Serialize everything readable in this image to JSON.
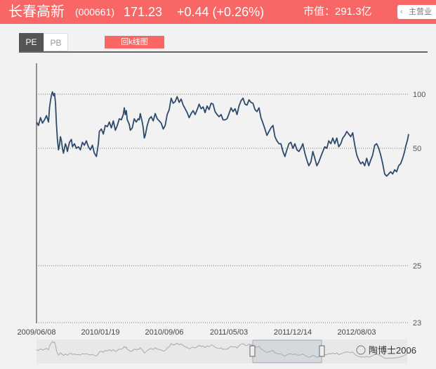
{
  "header": {
    "stock_name": "长春高新",
    "stock_code": "(000661)",
    "price": "171.23",
    "change": "+0.44 (+0.26%)",
    "market_cap": "市值：291.3亿",
    "main_business_label": "主营业",
    "back_arrow_icon": "chevron-left-icon"
  },
  "tabs": [
    "PE",
    "PB"
  ],
  "kline_button": "回k线图",
  "watermark": "陶博士2006",
  "colors": {
    "header_bg": "#f86665",
    "line": "#2e4a6b",
    "active_tab": "#555555"
  },
  "chart_data": {
    "type": "line",
    "title": "",
    "xlabel": "",
    "ylabel": "",
    "y_scale": "log",
    "yticks": [
      100,
      50,
      25,
      23
    ],
    "xticks": [
      "2009/06/08",
      "2010/01/19",
      "2010/09/06",
      "2011/05/03",
      "2011/12/14",
      "2012/08/03"
    ],
    "grid": "horizontal dotted",
    "series": [
      {
        "values": [
          [
            0,
            70
          ],
          [
            2,
            67
          ],
          [
            4,
            74
          ],
          [
            6,
            69
          ],
          [
            8,
            72
          ],
          [
            10,
            76
          ],
          [
            12,
            70
          ],
          [
            13,
            84
          ],
          [
            14,
            92
          ],
          [
            15,
            99
          ],
          [
            16,
            103
          ],
          [
            17,
            98
          ],
          [
            18,
            101
          ],
          [
            19,
            90
          ],
          [
            20,
            68
          ],
          [
            21,
            56
          ],
          [
            22,
            49
          ],
          [
            23,
            52
          ],
          [
            24,
            58
          ],
          [
            25,
            55
          ],
          [
            26,
            50
          ],
          [
            27,
            47
          ],
          [
            28,
            50
          ],
          [
            29,
            53
          ],
          [
            30,
            51
          ],
          [
            31,
            48
          ],
          [
            33,
            54
          ],
          [
            35,
            56
          ],
          [
            36,
            51
          ],
          [
            38,
            53
          ],
          [
            40,
            50
          ],
          [
            42,
            51
          ],
          [
            44,
            49
          ],
          [
            46,
            54
          ],
          [
            48,
            52
          ],
          [
            50,
            55
          ],
          [
            52,
            51
          ],
          [
            54,
            49
          ],
          [
            56,
            52
          ],
          [
            58,
            47
          ],
          [
            60,
            45
          ],
          [
            62,
            53
          ],
          [
            63,
            62
          ],
          [
            65,
            64
          ],
          [
            67,
            60
          ],
          [
            69,
            67
          ],
          [
            71,
            66
          ],
          [
            73,
            70
          ],
          [
            75,
            65
          ],
          [
            77,
            71
          ],
          [
            79,
            63
          ],
          [
            81,
            67
          ],
          [
            83,
            73
          ],
          [
            85,
            72
          ],
          [
            87,
            77
          ],
          [
            88,
            84
          ],
          [
            89,
            77
          ],
          [
            90,
            81
          ],
          [
            91,
            72
          ],
          [
            93,
            68
          ],
          [
            94,
            63
          ],
          [
            96,
            65
          ],
          [
            98,
            73
          ],
          [
            100,
            70
          ],
          [
            102,
            73
          ],
          [
            103,
            72
          ],
          [
            104,
            78
          ],
          [
            106,
            70
          ],
          [
            107,
            65
          ],
          [
            108,
            57
          ],
          [
            109,
            59
          ],
          [
            111,
            67
          ],
          [
            113,
            73
          ],
          [
            115,
            75
          ],
          [
            117,
            71
          ],
          [
            119,
            78
          ],
          [
            121,
            73
          ],
          [
            123,
            71
          ],
          [
            125,
            69
          ],
          [
            127,
            64
          ],
          [
            129,
            67
          ],
          [
            131,
            77
          ],
          [
            133,
            82
          ],
          [
            135,
            95
          ],
          [
            137,
            89
          ],
          [
            139,
            91
          ],
          [
            141,
            97
          ],
          [
            143,
            90
          ],
          [
            145,
            94
          ],
          [
            147,
            87
          ],
          [
            149,
            83
          ],
          [
            151,
            79
          ],
          [
            153,
            74
          ],
          [
            155,
            78
          ],
          [
            157,
            81
          ],
          [
            159,
            77
          ],
          [
            161,
            82
          ],
          [
            163,
            88
          ],
          [
            165,
            83
          ],
          [
            167,
            85
          ],
          [
            169,
            79
          ],
          [
            171,
            86
          ],
          [
            173,
            82
          ],
          [
            175,
            89
          ],
          [
            177,
            88
          ],
          [
            179,
            80
          ],
          [
            181,
            77
          ],
          [
            183,
            75
          ],
          [
            185,
            77
          ],
          [
            187,
            72
          ],
          [
            189,
            72
          ],
          [
            191,
            73
          ],
          [
            193,
            78
          ],
          [
            195,
            84
          ],
          [
            197,
            80
          ],
          [
            199,
            83
          ],
          [
            201,
            77
          ],
          [
            203,
            86
          ],
          [
            205,
            92
          ],
          [
            207,
            95
          ],
          [
            209,
            88
          ],
          [
            211,
            87
          ],
          [
            213,
            93
          ],
          [
            215,
            90
          ],
          [
            217,
            89
          ],
          [
            219,
            82
          ],
          [
            221,
            80
          ],
          [
            223,
            84
          ],
          [
            225,
            74
          ],
          [
            227,
            69
          ],
          [
            229,
            64
          ],
          [
            231,
            59
          ],
          [
            233,
            62
          ],
          [
            235,
            65
          ],
          [
            237,
            67
          ],
          [
            239,
            58
          ],
          [
            241,
            55
          ],
          [
            243,
            53
          ],
          [
            245,
            53
          ],
          [
            247,
            48
          ],
          [
            249,
            45
          ],
          [
            251,
            49
          ],
          [
            253,
            53
          ],
          [
            255,
            54
          ],
          [
            257,
            50
          ],
          [
            259,
            53
          ],
          [
            261,
            49
          ],
          [
            263,
            48
          ],
          [
            265,
            50
          ],
          [
            267,
            53
          ],
          [
            269,
            47
          ],
          [
            271,
            43
          ],
          [
            273,
            40
          ],
          [
            275,
            42
          ],
          [
            277,
            48
          ],
          [
            279,
            44
          ],
          [
            281,
            40
          ],
          [
            283,
            42
          ],
          [
            285,
            45
          ],
          [
            287,
            48
          ],
          [
            289,
            51
          ],
          [
            291,
            50
          ],
          [
            293,
            55
          ],
          [
            295,
            53
          ],
          [
            297,
            57
          ],
          [
            299,
            53
          ],
          [
            301,
            57
          ],
          [
            303,
            51
          ],
          [
            305,
            53
          ],
          [
            307,
            57
          ],
          [
            309,
            59
          ],
          [
            311,
            62
          ],
          [
            313,
            60
          ],
          [
            315,
            58
          ],
          [
            317,
            61
          ],
          [
            319,
            52
          ],
          [
            321,
            46
          ],
          [
            323,
            43
          ],
          [
            325,
            41
          ],
          [
            327,
            42
          ],
          [
            329,
            40
          ],
          [
            331,
            44
          ],
          [
            333,
            40
          ],
          [
            335,
            43
          ],
          [
            337,
            46
          ],
          [
            339,
            52
          ],
          [
            341,
            53
          ],
          [
            343,
            50
          ],
          [
            345,
            46
          ],
          [
            347,
            41
          ],
          [
            349,
            36
          ],
          [
            351,
            35
          ],
          [
            353,
            36
          ],
          [
            355,
            37
          ],
          [
            357,
            36
          ],
          [
            359,
            38
          ],
          [
            361,
            37
          ],
          [
            363,
            40
          ],
          [
            365,
            41
          ],
          [
            367,
            44
          ],
          [
            369,
            48
          ],
          [
            370,
            51
          ],
          [
            372,
            56
          ],
          [
            373,
            60
          ]
        ]
      }
    ]
  }
}
